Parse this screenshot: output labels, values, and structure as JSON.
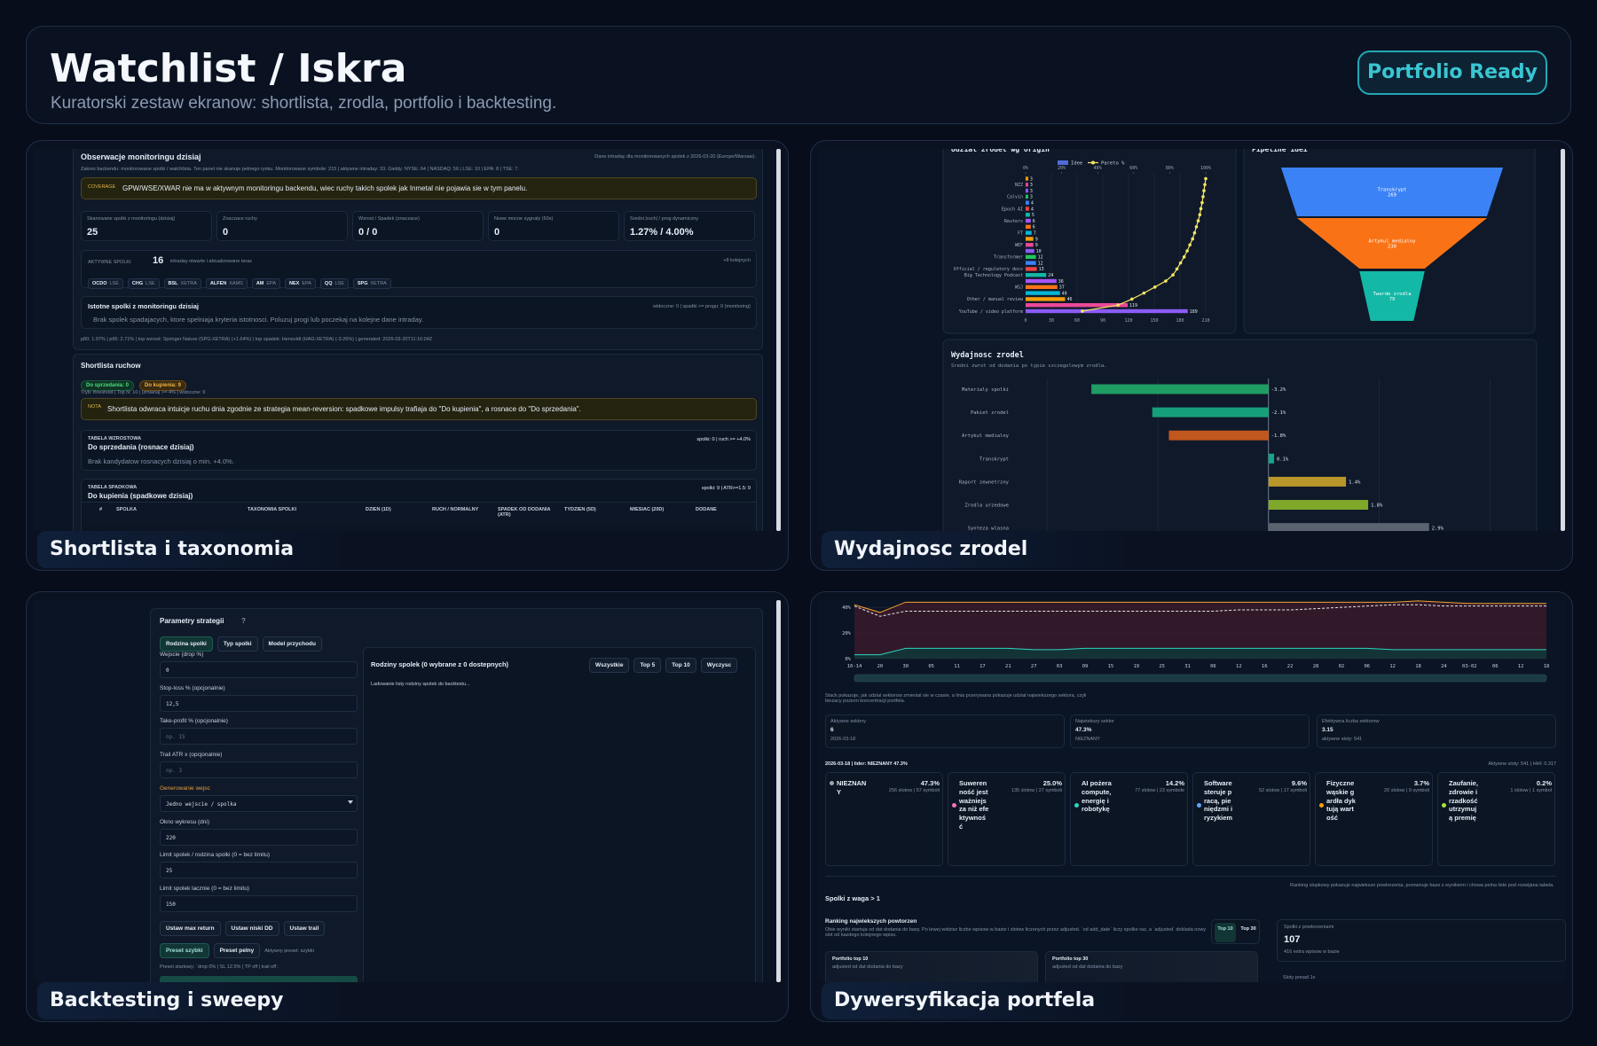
{
  "header": {
    "title": "Watchlist / Iskra",
    "subtitle": "Kuratorski zestaw ekranow: shortlista, zrodla, portfolio i backtesting.",
    "badge": "Portfolio Ready"
  },
  "panels": [
    {
      "caption": "Shortlista i taxonomia"
    },
    {
      "caption": "Wydajnosc zrodel"
    },
    {
      "caption": "Backtesting i sweepy"
    },
    {
      "caption": "Dywersyfikacja portfela"
    }
  ],
  "shortlist": {
    "title": "Obserwacje monitoringu dzisiaj",
    "meta": "Dane intraday dla monitorowanych spolek z 2026-03-20 (Europe/Warsaw).",
    "scope": "Zakres backendu: monitorowane spolki / watchlista. Ten panel nie skanuje pelnego rynku. Monitorowane symbole: 215 | aktywne intraday: 33. Gieldy: NYSE: 64 | NASDAQ: 56 | LSE: 10 | EPA: 8 | TSE: 7.",
    "coverage": {
      "tag": "COVERAGE",
      "text": "GPW/WSE/XWAR nie ma w aktywnym monitoringu backendu, wiec ruchy takich spolek jak Inmetal nie pojawia sie w tym panelu."
    },
    "stats": [
      {
        "label": "Skanowane spolki z monitoringu (dzisiaj)",
        "value": "25"
      },
      {
        "label": "Znaczace ruchy",
        "value": "0"
      },
      {
        "label": "Wzrost / Spadek (znaczace)",
        "value": "0 / 0"
      },
      {
        "label": "Nowe mocne sygnaly (60s)",
        "value": "0"
      },
      {
        "label": "Sredni |ruch| / prog dynamiczny",
        "value": "1.27% / 4.00%"
      }
    ],
    "active": {
      "label": "AKTYWNE SPOLKI",
      "count": "16",
      "note": "intraday otwarte i aktualizowane teraz",
      "more": "+8 kolejnych",
      "tickers": [
        {
          "symbol": "OCDO",
          "exchange": "LSE"
        },
        {
          "symbol": "CHG",
          "exchange": "LSE"
        },
        {
          "symbol": "BSL",
          "exchange": "XETRA"
        },
        {
          "symbol": "ALFEN",
          "exchange": "XAMS"
        },
        {
          "symbol": "AM",
          "exchange": "EPA"
        },
        {
          "symbol": "NEX",
          "exchange": "EPA"
        },
        {
          "symbol": "QQ",
          "exchange": "LSE"
        },
        {
          "symbol": "SPG",
          "exchange": "XETRA"
        }
      ]
    },
    "important": {
      "title": "Istotne spolki z monitoringu dzisiaj",
      "meta": "widoczne: 0 | spadki >= progu: 0 (monitoring)",
      "text": "Brak spolek spadajacych, ktore spelniaja kryteria istotnosci. Poluzuj progi lub poczekaj na kolejne dane intraday."
    },
    "footer": "p80: 1.97% | p95: 2.71% | top wzrost: Springer Nature (SPG:XETRA) (+1.64%) | top spadek: Hensoldt (HAG:XETRA) (-3.26%) | generated: 2026-03-20T11:16:04Z",
    "moves": {
      "title": "Shortlista ruchow",
      "pills": [
        "Do sprzedania: 0",
        "Do kupienia: 9"
      ],
      "meta": "Tryb: threshold | Top N: 10 | |zmiana| >= 4% | widoczne: 9",
      "note": {
        "tag": "NOTA",
        "text": "Shortlista odwraca intuicje ruchu dnia zgodnie ze strategia mean-reversion: spadkowe impulsy trafiaja do \"Do kupienia\", a rosnace do \"Do sprzedania\"."
      },
      "tables": [
        {
          "kicker": "TABELA WZROSTOWA",
          "title": "Do sprzedania (rosnace dzisiaj)",
          "meta": "spolki: 0 | ruch >= +4.0%",
          "text": "Brak kandydatow rosnacych dzisiaj o min. +4.0%."
        },
        {
          "kicker": "TABELA SPADKOWA",
          "title": "Do kupienia (spadkowe dzisiaj)",
          "meta": "spolki: 9 | ATR>=1.5: 9"
        }
      ],
      "columns": [
        "#",
        "SPOLKA",
        "TAXONOMIA SPOLKI",
        "DZIEN (1D)",
        "RUCH / NORMALNY",
        "SPADEK OD DODANIA (ATR)",
        "TYDZIEN (5D)",
        "MIESIAC (20D)",
        "DODANE"
      ]
    }
  },
  "sources": {
    "origin": {
      "type": "bar",
      "title": "Udzial zrodel wg origin",
      "legend": [
        "Idee",
        "Pareto %"
      ],
      "legend_color": "#4f6bd8",
      "pareto_color": "#f5e663",
      "categories": [
        null,
        "NZZ",
        null,
        "Calvin",
        null,
        "Epoch AI",
        null,
        "Reuters",
        null,
        "FT",
        null,
        "WEF",
        null,
        "Transformer",
        null,
        "Official / regulatory docs",
        "Big Technology Podcast",
        null,
        "WSJ",
        null,
        "Other / manual review",
        null,
        "YouTube / video platform"
      ],
      "values": [
        3,
        3,
        3,
        3,
        4,
        4,
        5,
        6,
        6,
        7,
        9,
        9,
        10,
        12,
        12,
        13,
        24,
        36,
        37,
        40,
        46,
        119,
        189
      ],
      "pareto": [
        100,
        99.5,
        99,
        98.5,
        98,
        97.3,
        96.7,
        95.8,
        94.8,
        93.8,
        92.7,
        91.2,
        89.7,
        88,
        86,
        84,
        81.8,
        77.8,
        71.8,
        65.7,
        59,
        51.3,
        31.5
      ],
      "colors": [
        "#f59e0b",
        "#ec4899",
        "#8b5cf6",
        "#22c55e",
        "#3b82f6",
        "#ef4444",
        "#14b8a6",
        "#a855f7",
        "#f97316",
        "#06b6d4"
      ],
      "xlim": [
        0,
        210
      ],
      "xticks": [
        0,
        30,
        60,
        90,
        120,
        150,
        180,
        210
      ],
      "x2lim": [
        0,
        100
      ],
      "x2ticks": [
        {
          "value": 0,
          "label": "0%"
        },
        {
          "value": 20,
          "label": "20%"
        },
        {
          "value": 40,
          "label": "40%"
        },
        {
          "value": 60,
          "label": "60%"
        },
        {
          "value": 80,
          "label": "80%"
        },
        {
          "value": 100,
          "label": "100%"
        }
      ]
    },
    "funnel": {
      "type": "funnel",
      "title": "Pipeline idei",
      "stages": [
        {
          "label": "Transkrypt",
          "value": 269,
          "color": "#3b82f6"
        },
        {
          "label": "Artykul medialny",
          "value": 230,
          "color": "#f97316"
        },
        {
          "label": "Twarde zrodla",
          "value": 79,
          "color": "#14b8a6"
        }
      ]
    },
    "performance": {
      "type": "bar",
      "title": "Wydajnosc zrodel",
      "subtitle": "Sredni zwrot od dodania po typie szczegolowym zrodla.",
      "categories": [
        "Materialy spolki",
        "Pakiet zrodel",
        "Artykul medialny",
        "Transkrypt",
        "Raport zewnetrzny",
        "Zrodla urzedowe",
        "Synteza wlasna"
      ],
      "values": [
        -3.2,
        -2.1,
        -1.8,
        0.1,
        1.4,
        1.8,
        2.9
      ],
      "value_labels": [
        "-3.2%",
        "-2.1%",
        "-1.8%",
        "0.1%",
        "1.4%",
        "1.8%",
        "2.9%"
      ],
      "colors": [
        "#1f9d63",
        "#16a07a",
        "#c2571e",
        "#14a38b",
        "#b8962a",
        "#7fa82a",
        "#5b6370"
      ],
      "xlim": [
        -4.5,
        4.7
      ],
      "xticks": [
        -4,
        -2,
        0,
        2,
        4
      ]
    }
  },
  "backtest": {
    "title": "Parametry strategii",
    "help": "?",
    "tabs": [
      "Rodzina spolki",
      "Typ spolki",
      "Model przychodu"
    ],
    "fields": [
      {
        "label": "Wejscie (drop %)",
        "value": "0"
      },
      {
        "label": "Stop-loss % (opcjonalnie)",
        "value": "12,5"
      },
      {
        "label": "Take-profit % (opcjonalnie)",
        "placeholder": "np. 15"
      },
      {
        "label": "Trail ATR x (opcjonalnie)",
        "placeholder": "np. 3"
      },
      {
        "label": "Generowanie wejsc",
        "value": "Jedno wejscie / spolka"
      },
      {
        "label": "Okno wykresu (dni)",
        "value": "220"
      },
      {
        "label": "Limit spolek / rodzina spolki (0 = bez limitu)",
        "value": "25"
      },
      {
        "label": "Limit spolek lacznie (0 = bez limitu)",
        "value": "150"
      }
    ],
    "buttons": [
      "Ustaw max return",
      "Ustaw niski DD",
      "Ustaw trail"
    ],
    "presets": [
      "Preset szybki",
      "Preset pelny"
    ],
    "active_preset": "Aktywny preset: szybki",
    "preset_note": "Preset startowy: `drop 0% | SL 12.5% | TP off | trail off`.",
    "families": {
      "title": "Rodziny spolek (0 wybrane z 0 dostepnych)",
      "buttons": [
        "Wszystkie",
        "Top 5",
        "Top 10",
        "Wyczysc"
      ],
      "loading": "Ladowanie listy rodziny spolek do backtestu..."
    }
  },
  "portfolio": {
    "chart": {
      "type": "line",
      "x": [
        "10-14",
        "20",
        "30",
        "05",
        "11",
        "17",
        "21",
        "27",
        "03",
        "09",
        "15",
        "19",
        "25",
        "31",
        "06",
        "12",
        "16",
        "22",
        "28",
        "02",
        "06",
        "12",
        "18",
        "24",
        "03-02",
        "06",
        "12",
        "18"
      ],
      "ylim": [
        0,
        47
      ],
      "yticks": [
        {
          "value": 0,
          "label": "0%"
        },
        {
          "value": 20,
          "label": "20%"
        },
        {
          "value": 40,
          "label": "40%"
        }
      ],
      "series": [
        {
          "color": "#f0a030",
          "values": [
            42,
            36,
            44,
            44,
            44,
            44,
            44,
            44,
            44,
            44,
            44,
            44,
            44,
            44,
            44,
            44,
            44,
            44,
            44,
            44,
            44,
            44,
            45,
            44,
            43,
            43,
            43,
            43
          ]
        },
        {
          "color": "#e5e7eb",
          "dash": true,
          "values": [
            41,
            33,
            37,
            37,
            37,
            37,
            37,
            37,
            37,
            37,
            37,
            37,
            37,
            37,
            37,
            38,
            38,
            38,
            39,
            40,
            41,
            42,
            42,
            41,
            41,
            41,
            41,
            41
          ]
        },
        {
          "color": "#2dd4bf",
          "values": [
            3,
            3,
            8,
            8,
            8,
            8,
            8,
            7,
            7,
            8,
            8,
            8,
            8,
            8,
            8,
            8,
            8,
            8,
            8,
            8,
            8,
            7,
            7,
            7,
            7,
            7,
            7,
            7
          ]
        }
      ]
    },
    "description": "Stack pokazuje, jak udzial sektorow zmienial sie w czasie, a linia przerywana pokazuje udzial najwiekszego sektora, czyli biezacy poziom koncentracji portfela.",
    "stats": [
      {
        "label": "Aktywne sektory",
        "value": "6",
        "sub": "2026-03-18"
      },
      {
        "label": "Najwiekszy sektor",
        "value": "47.3%",
        "sub": "NIEZNANY"
      },
      {
        "label": "Efektywna liczba sektorow",
        "value": "3.15",
        "sub": "aktywne sloty: 541"
      }
    ],
    "leader": "2026-03-18 | lider: NIEZNANY 47.3%",
    "slots": "Aktywne sloty: 541 | HHI: 0.317",
    "sectors": [
      {
        "name": "NIEZNANY",
        "pct": "47.3%",
        "meta": "256 slotow | 57 symboli",
        "color": "#9ca3af"
      },
      {
        "name": "Suwerenność jest ważniejsza niż efektywność",
        "pct": "25.0%",
        "meta": "135 slotow | 27 symboli",
        "color": "#f472b6"
      },
      {
        "name": "AI pożera compute, energię i robotykę",
        "pct": "14.2%",
        "meta": "77 slotow | 23 symbole",
        "color": "#2dd4bf"
      },
      {
        "name": "Software steruje pracą, pieniędzmi i ryzykiem",
        "pct": "9.6%",
        "meta": "52 slotow | 17 symboli",
        "color": "#60a5fa"
      },
      {
        "name": "Fizyczne wąskie gardła dyktują wartość",
        "pct": "3.7%",
        "meta": "20 slotow | 9 symboli",
        "color": "#f59e0b"
      },
      {
        "name": "Zaufanie, zdrowie i rzadkość utrzymują premię",
        "pct": "0.2%",
        "meta": "1 slotow | 1 symbol",
        "color": "#a3e635"
      }
    ],
    "weights_title": "Spolki z waga > 1",
    "weights_note": "Ranking slupkowy pokazuje najwieksze powtorzenia, porownuje baze z wynikiem i chowa pelna liste pod rozwijana tabela.",
    "ranking": {
      "title": "Ranking najwiekszych powtorzen",
      "text": "Obie wyniki startuja od dat dodania do bazy. Po lewej widzisz liczbe wpisow w bazie i slotow liczonych przez adjusted. `od add_date` liczy spolke raz, a `adjusted` doklada nowy slot od kazdego kolejnego wpisu.",
      "toggles": [
        "Top 10",
        "Top 30"
      ],
      "cards": [
        {
          "title": "Portfolio top 10",
          "sub": "adjusted od dat dodania do bazy"
        },
        {
          "title": "Portfolio top 30",
          "sub": "adjusted od dat dodania do bazy"
        }
      ],
      "stat": {
        "label": "Spolki z powtorzeniami",
        "value": "107",
        "sub": "416 extra wpisow w bazie"
      },
      "next": "Sloty ponad 1x"
    }
  }
}
